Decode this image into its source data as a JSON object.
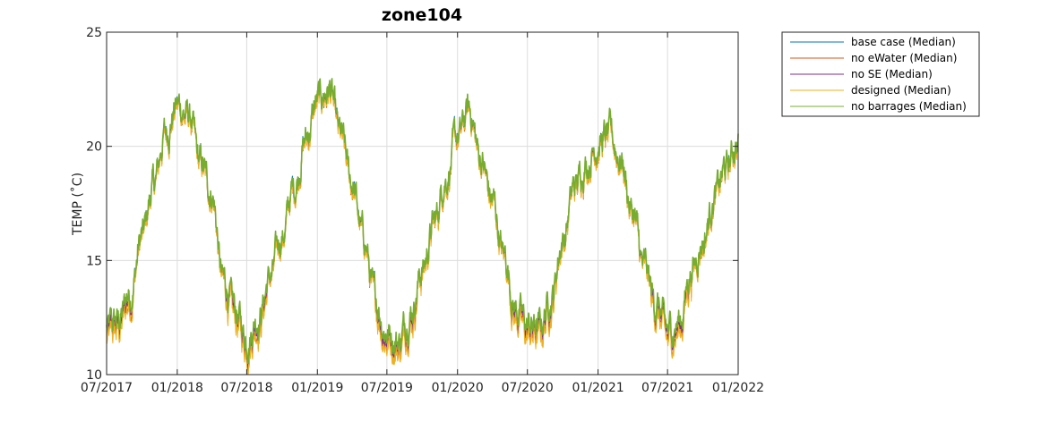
{
  "chart_data": {
    "type": "line",
    "title": "zone104",
    "xlabel": "",
    "ylabel": "TEMP (˚C)",
    "xlim": [
      "2017-07-01",
      "2022-01-01"
    ],
    "ylim": [
      10,
      25
    ],
    "xticks": [
      {
        "date": "2017-07-01",
        "label": "07/2017"
      },
      {
        "date": "2018-01-01",
        "label": "01/2018"
      },
      {
        "date": "2018-07-01",
        "label": "07/2018"
      },
      {
        "date": "2019-01-01",
        "label": "01/2019"
      },
      {
        "date": "2019-07-01",
        "label": "07/2019"
      },
      {
        "date": "2020-01-01",
        "label": "01/2020"
      },
      {
        "date": "2020-07-01",
        "label": "07/2020"
      },
      {
        "date": "2021-01-01",
        "label": "01/2021"
      },
      {
        "date": "2021-07-01",
        "label": "07/2021"
      },
      {
        "date": "2022-01-01",
        "label": "01/2022"
      }
    ],
    "yticks": [
      {
        "value": 10,
        "label": "10"
      },
      {
        "value": 15,
        "label": "15"
      },
      {
        "value": 20,
        "label": "20"
      },
      {
        "value": 25,
        "label": "25"
      }
    ],
    "grid": true,
    "legend_position": "outside-top-right",
    "series": [
      {
        "name": "base case (Median)",
        "color": "#0072bd",
        "offset": 0.0
      },
      {
        "name": "no eWater (Median)",
        "color": "#d95319",
        "offset": -0.25
      },
      {
        "name": "no SE (Median)",
        "color": "#7e2f8e",
        "offset": -0.1
      },
      {
        "name": "designed (Median)",
        "color": "#edb120",
        "offset": -0.35
      },
      {
        "name": "no barrages (Median)",
        "color": "#77ac30",
        "offset": 0.05
      }
    ],
    "x": [
      "2017-07-01",
      "2017-08-01",
      "2017-09-01",
      "2017-10-01",
      "2017-11-01",
      "2017-12-01",
      "2018-01-01",
      "2018-02-01",
      "2018-03-01",
      "2018-04-01",
      "2018-05-01",
      "2018-06-01",
      "2018-07-01",
      "2018-08-01",
      "2018-09-01",
      "2018-10-01",
      "2018-11-01",
      "2018-12-01",
      "2019-01-01",
      "2019-02-01",
      "2019-03-01",
      "2019-04-01",
      "2019-05-01",
      "2019-06-01",
      "2019-07-01",
      "2019-08-01",
      "2019-09-01",
      "2019-10-01",
      "2019-11-01",
      "2019-12-01",
      "2020-01-01",
      "2020-02-01",
      "2020-03-01",
      "2020-04-01",
      "2020-05-01",
      "2020-06-01",
      "2020-07-01",
      "2020-08-01",
      "2020-09-01",
      "2020-10-01",
      "2020-11-01",
      "2020-12-01",
      "2021-01-01",
      "2021-02-01",
      "2021-03-01",
      "2021-04-01",
      "2021-05-01",
      "2021-06-01",
      "2021-07-01",
      "2021-08-01",
      "2021-09-01",
      "2021-10-01",
      "2021-11-01",
      "2021-12-01",
      "2022-01-01"
    ],
    "values": [
      11.9,
      12.3,
      13.6,
      16.0,
      18.3,
      20.6,
      21.8,
      21.3,
      19.2,
      18.0,
      14.0,
      12.7,
      11.6,
      12.6,
      14.3,
      16.1,
      18.2,
      20.3,
      21.9,
      22.5,
      20.4,
      18.4,
      16.0,
      13.2,
      11.9,
      11.5,
      12.8,
      14.6,
      16.6,
      18.7,
      20.3,
      21.6,
      19.5,
      17.6,
      15.2,
      12.9,
      12.1,
      12.0,
      13.4,
      15.9,
      18.2,
      19.3,
      20.2,
      20.4,
      19.5,
      17.1,
      14.6,
      13.1,
      11.8,
      12.3,
      14.6,
      15.9,
      17.8,
      19.0,
      20.3
    ]
  }
}
